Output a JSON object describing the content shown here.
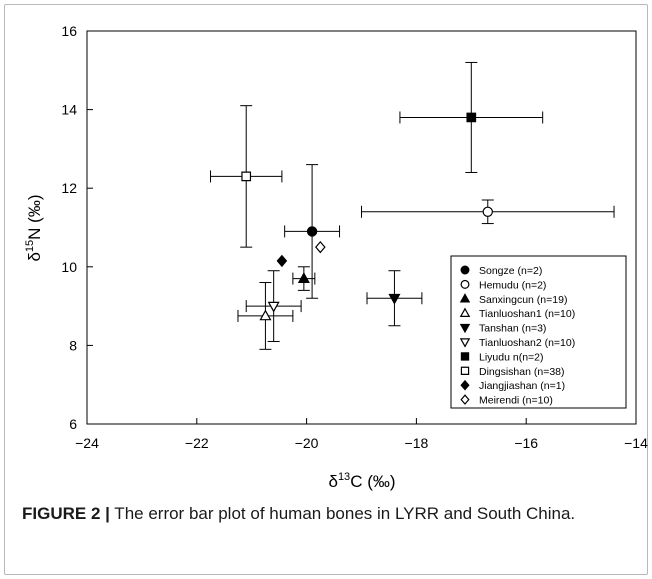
{
  "chart_data": {
    "type": "scatter",
    "xlabel_symbol": "δ",
    "xlabel_sup": "13",
    "xlabel_rest": "C (‰)",
    "ylabel_symbol": "δ",
    "ylabel_sup": "15",
    "ylabel_rest": "N (‰)",
    "xlim": [
      -24,
      -14
    ],
    "ylim": [
      6,
      16
    ],
    "xticks": [
      -24,
      -22,
      -20,
      -18,
      -16,
      -14
    ],
    "yticks": [
      6,
      8,
      10,
      12,
      14,
      16
    ],
    "legend_position": "bottom-right",
    "series": [
      {
        "name": "Songze (n=2)",
        "marker": "circle",
        "filled": true,
        "x": -19.9,
        "y": 10.9,
        "xerr": 0.5,
        "yerr": 1.7
      },
      {
        "name": "Hemudu (n=2)",
        "marker": "circle",
        "filled": false,
        "x": -16.7,
        "y": 11.4,
        "xerr": 2.3,
        "yerr": 0.3
      },
      {
        "name": "Sanxingcun (n=19)",
        "marker": "triangle-up",
        "filled": true,
        "x": -20.05,
        "y": 9.7,
        "xerr": 0.2,
        "yerr": 0.3
      },
      {
        "name": "Tianluoshan1 (n=10)",
        "marker": "triangle-up",
        "filled": false,
        "x": -20.75,
        "y": 8.75,
        "xerr": 0.5,
        "yerr": 0.85
      },
      {
        "name": "Tanshan (n=3)",
        "marker": "triangle-down",
        "filled": true,
        "x": -18.4,
        "y": 9.2,
        "xerr": 0.5,
        "yerr": 0.7
      },
      {
        "name": "Tianluoshan2 (n=10)",
        "marker": "triangle-down",
        "filled": false,
        "x": -20.6,
        "y": 9.0,
        "xerr": 0.5,
        "yerr": 0.9
      },
      {
        "name": "Liyudu n(n=2)",
        "marker": "square",
        "filled": true,
        "x": -17.0,
        "y": 13.8,
        "xerr": 1.3,
        "yerr": 1.4
      },
      {
        "name": "Dingsishan (n=38)",
        "marker": "square",
        "filled": false,
        "x": -21.1,
        "y": 12.3,
        "xerr": 0.65,
        "yerr": 1.8
      },
      {
        "name": "Jiangjiashan (n=1)",
        "marker": "diamond",
        "filled": true,
        "x": -20.45,
        "y": 10.15
      },
      {
        "name": "Meirendi (n=10)",
        "marker": "diamond",
        "filled": false,
        "x": -19.75,
        "y": 10.5
      }
    ]
  },
  "caption": {
    "label": "FIGURE 2 |",
    "text": " The error bar plot of human bones in LYRR and South China."
  }
}
